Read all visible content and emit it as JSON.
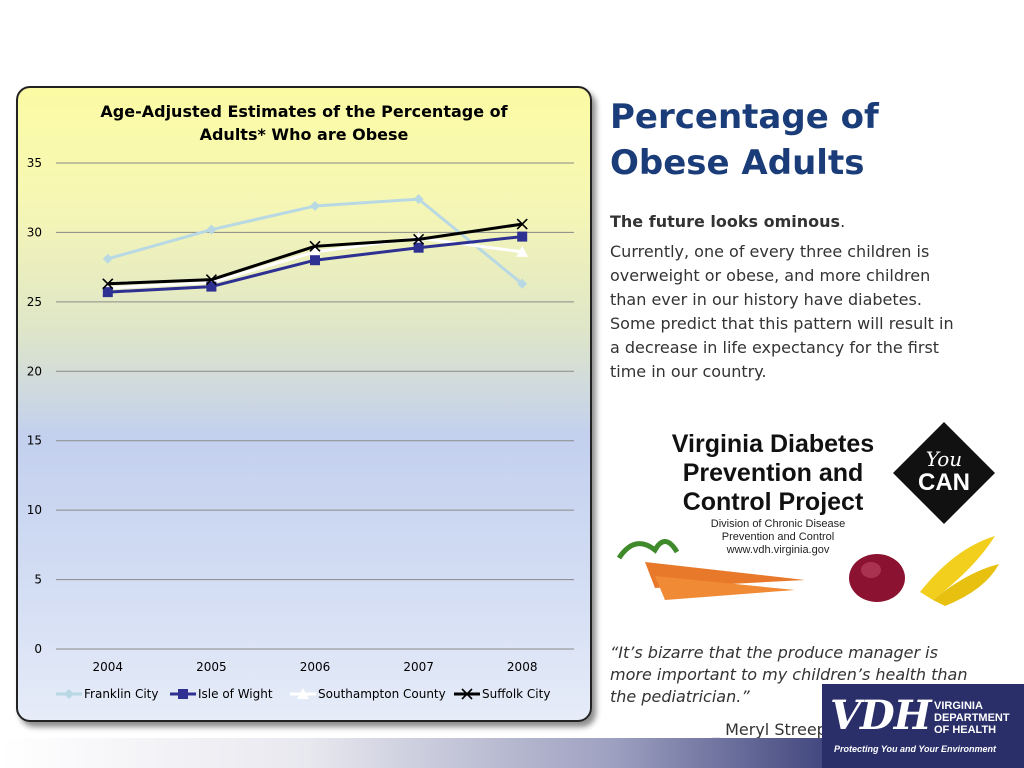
{
  "slide": {
    "title": "Percentage of Obese Adults",
    "intro_bold": "The future looks ominous",
    "intro_period": ".",
    "body": "Currently, one of every three children is overweight or obese, and more children than ever in our history have diabetes. Some predict that this pattern will result in a decrease in life expectancy for the first time in our country.",
    "quote": "“It’s bizarre  that the produce manager is more important to my children’s health than the pediatrician.”",
    "quote_author": "_ Meryl  Streep"
  },
  "logo": {
    "title": "Virginia Diabetes Prevention and Control Project",
    "badge_top": "You",
    "badge_bottom": "CAN",
    "sub1": "Division of Chronic Disease",
    "sub2": "Prevention and Control",
    "sub3": "www.vdh.virginia.gov"
  },
  "vdh": {
    "mark": "VDH",
    "line1": "VIRGINIA",
    "line2": "DEPARTMENT",
    "line3": "OF HEALTH",
    "tagline": "Protecting You and Your Environment"
  },
  "chart_data": {
    "type": "line",
    "title": "Age-Adjusted Estimates of the Percentage of Adults* Who are Obese",
    "title_lines": [
      "Age-Adjusted Estimates of the Percentage of",
      "Adults* Who are Obese"
    ],
    "categories": [
      "2004",
      "2005",
      "2006",
      "2007",
      "2008"
    ],
    "ylim": [
      0,
      35
    ],
    "yticks": [
      0,
      5,
      10,
      15,
      20,
      25,
      30,
      35
    ],
    "grid": true,
    "legend_position": "bottom",
    "series": [
      {
        "name": "Franklin City",
        "values": [
          28.1,
          30.2,
          31.9,
          32.4,
          26.3
        ],
        "color": "#b8d8e4",
        "marker": "diamond"
      },
      {
        "name": "Isle of Wight",
        "values": [
          25.7,
          26.1,
          28.0,
          28.9,
          29.7
        ],
        "color": "#2e3192",
        "marker": "square"
      },
      {
        "name": "Southampton County",
        "values": [
          26.0,
          26.4,
          28.6,
          29.6,
          28.6
        ],
        "color": "#ffffff",
        "marker": "triangle"
      },
      {
        "name": "Suffolk City",
        "values": [
          26.3,
          26.6,
          29.0,
          29.5,
          30.6
        ],
        "color": "#000000",
        "marker": "x"
      }
    ]
  }
}
